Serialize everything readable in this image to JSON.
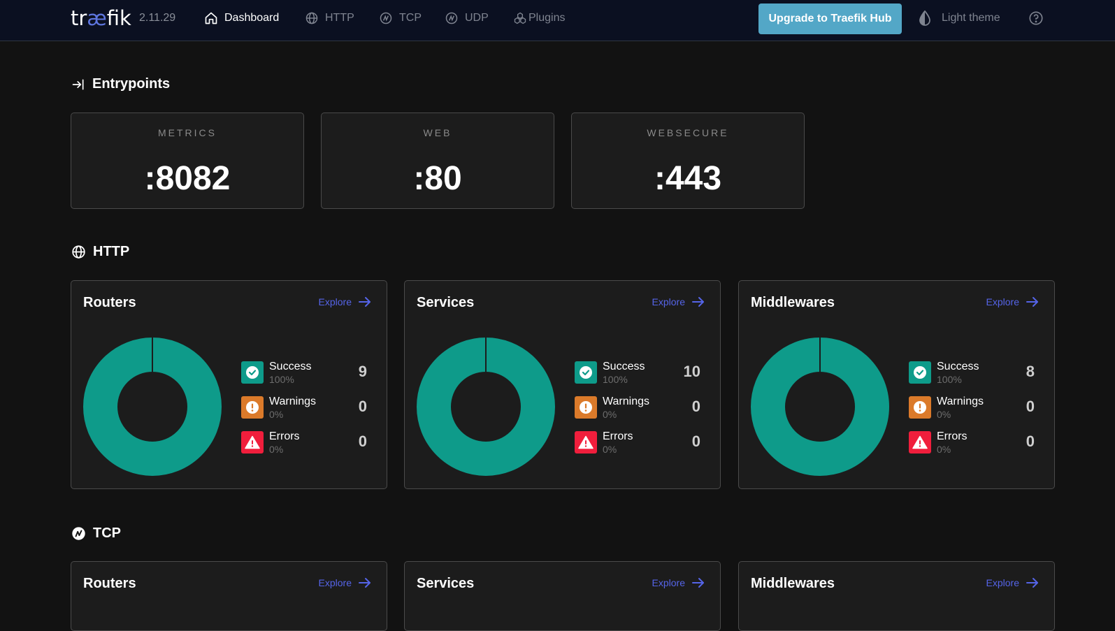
{
  "header": {
    "logo_text": {
      "pre": "tr",
      "ae": "æ",
      "post": "fik"
    },
    "version": "2.11.29",
    "nav": [
      {
        "label": "Dashboard",
        "icon": "home-icon",
        "active": true
      },
      {
        "label": "HTTP",
        "icon": "globe-icon"
      },
      {
        "label": "TCP",
        "icon": "tcp-icon"
      },
      {
        "label": "UDP",
        "icon": "udp-icon"
      },
      {
        "label": "Plugins",
        "icon": "plugins-icon"
      }
    ],
    "upgrade_label": "Upgrade to Traefik Hub",
    "theme_label": "Light theme"
  },
  "entrypoints": {
    "title": "Entrypoints",
    "items": [
      {
        "name": "METRICS",
        "port": ":8082"
      },
      {
        "name": "WEB",
        "port": ":80"
      },
      {
        "name": "WEBSECURE",
        "port": ":443"
      }
    ]
  },
  "http": {
    "title": "HTTP",
    "cards": [
      {
        "title": "Routers",
        "explore": "Explore",
        "stats": {
          "success": {
            "label": "Success",
            "pct": "100%",
            "count": "9"
          },
          "warnings": {
            "label": "Warnings",
            "pct": "0%",
            "count": "0"
          },
          "errors": {
            "label": "Errors",
            "pct": "0%",
            "count": "0"
          }
        }
      },
      {
        "title": "Services",
        "explore": "Explore",
        "stats": {
          "success": {
            "label": "Success",
            "pct": "100%",
            "count": "10"
          },
          "warnings": {
            "label": "Warnings",
            "pct": "0%",
            "count": "0"
          },
          "errors": {
            "label": "Errors",
            "pct": "0%",
            "count": "0"
          }
        }
      },
      {
        "title": "Middlewares",
        "explore": "Explore",
        "stats": {
          "success": {
            "label": "Success",
            "pct": "100%",
            "count": "8"
          },
          "warnings": {
            "label": "Warnings",
            "pct": "0%",
            "count": "0"
          },
          "errors": {
            "label": "Errors",
            "pct": "0%",
            "count": "0"
          }
        }
      }
    ]
  },
  "tcp": {
    "title": "TCP",
    "cards": [
      {
        "title": "Routers",
        "explore": "Explore"
      },
      {
        "title": "Services",
        "explore": "Explore"
      },
      {
        "title": "Middlewares",
        "explore": "Explore"
      }
    ]
  },
  "colors": {
    "success": "#0e9b8a",
    "warning": "#db7a2a",
    "error": "#f01e3c",
    "accent": "#5564e8",
    "upgrade": "#53a7c7"
  }
}
